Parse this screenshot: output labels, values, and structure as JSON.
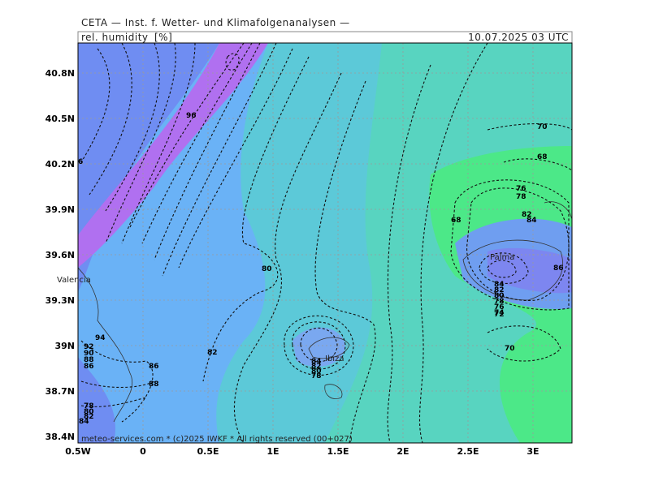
{
  "header": {
    "institute": "CETA — Inst. f. Wetter- und Klimafolgenanalysen —",
    "parameter": "rel. humidity",
    "unit": "[%]",
    "valid_time": "10.07.2025 03 UTC"
  },
  "axes": {
    "lat_labels": [
      "40.8N",
      "40.5N",
      "40.2N",
      "39.9N",
      "39.6N",
      "39.3N",
      "39N",
      "38.7N",
      "38.4N"
    ],
    "lon_labels": [
      "0.5W",
      "0",
      "0.5E",
      "1E",
      "1.5E",
      "2E",
      "2.5E",
      "3E"
    ]
  },
  "places": [
    "Valencia",
    "Palma",
    "Ibiza"
  ],
  "contour_labels": [
    "96",
    "6",
    "80",
    "82",
    "86",
    "88",
    "94",
    "92",
    "90",
    "88",
    "86",
    "70",
    "68",
    "68",
    "76",
    "78",
    "82",
    "84",
    "86",
    "84",
    "82",
    "80",
    "78",
    "76",
    "74",
    "72",
    "70",
    "84",
    "82",
    "80",
    "78",
    "78",
    "80",
    "82",
    "84"
  ],
  "footer": "meteo-services.com * (c)2025 IWKF * All rights reserved (00+027)"
}
